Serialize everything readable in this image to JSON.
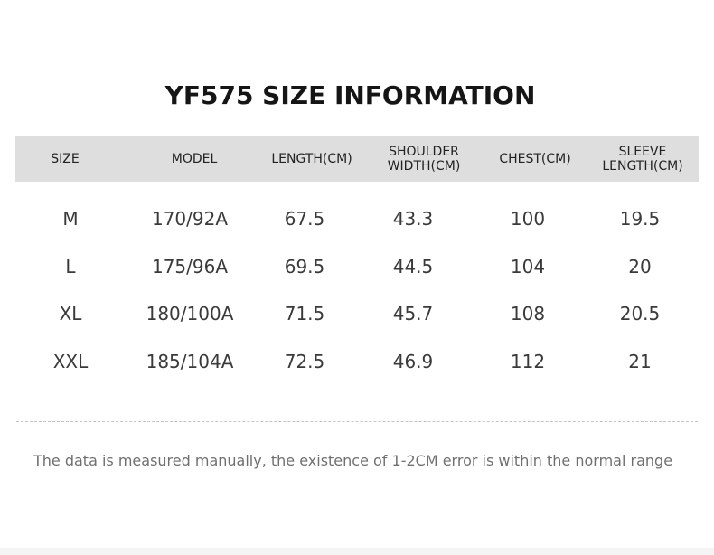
{
  "title": "YF575 SIZE INFORMATION",
  "table": {
    "headers": [
      [
        "SIZE"
      ],
      [
        "MODEL"
      ],
      [
        "LENGTH(CM)"
      ],
      [
        "SHOULDER",
        "WIDTH(CM)"
      ],
      [
        "CHEST(CM)"
      ],
      [
        "SLEEVE",
        "LENGTH(CM)"
      ]
    ],
    "rows": [
      [
        "M",
        "170/92A",
        "67.5",
        "43.3",
        "100",
        "19.5"
      ],
      [
        "L",
        "175/96A",
        "69.5",
        "44.5",
        "104",
        "20"
      ],
      [
        "XL",
        "180/100A",
        "71.5",
        "45.7",
        "108",
        "20.5"
      ],
      [
        "XXL",
        "185/104A",
        "72.5",
        "46.9",
        "112",
        "21"
      ]
    ]
  },
  "note": "The data is measured manually, the existence of 1-2CM error is within the normal range",
  "colors": {
    "header_background": "#dedede",
    "title_text": "#151515",
    "note_text": "#6f6f6f"
  }
}
